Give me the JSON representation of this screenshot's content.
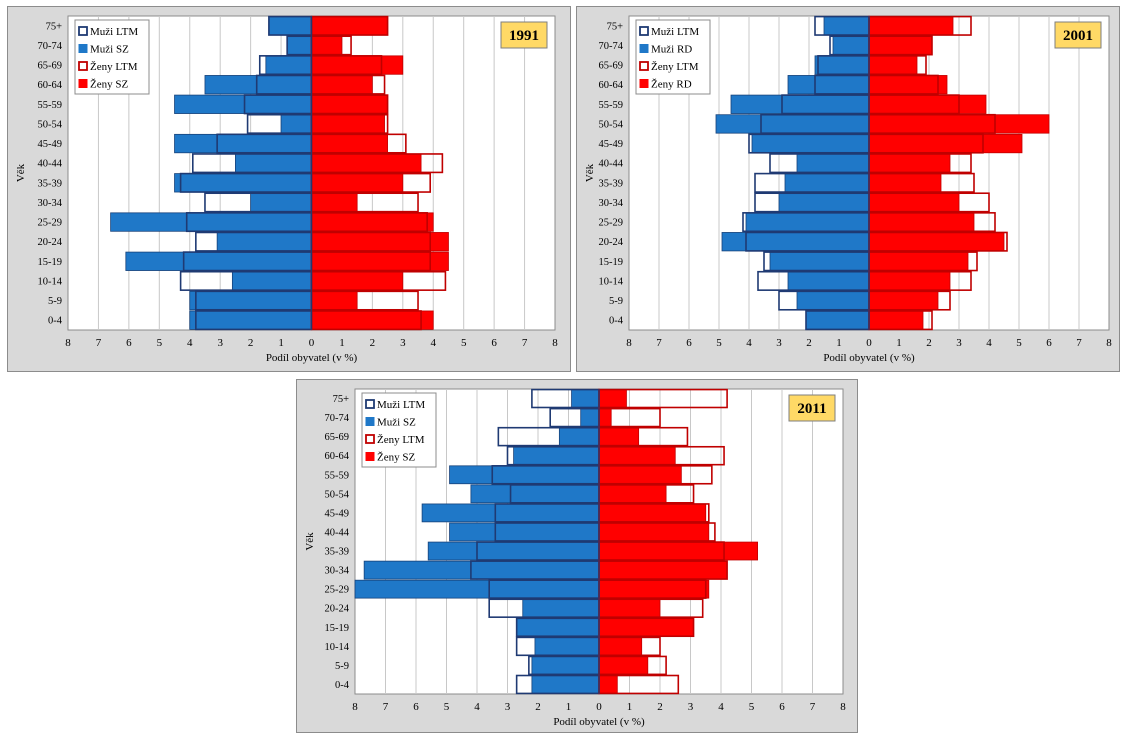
{
  "chart_data": [
    {
      "type": "bar",
      "subtype": "population-pyramid",
      "year_label": "1991",
      "xlabel": "Podíl obyvatel (v %)",
      "ylabel": "Věk",
      "x_ticks": [
        "8",
        "7",
        "6",
        "5",
        "4",
        "3",
        "2",
        "1",
        "0",
        "1",
        "2",
        "3",
        "4",
        "5",
        "6",
        "7",
        "8"
      ],
      "categories": [
        "0-4",
        "5-9",
        "10-14",
        "15-19",
        "20-24",
        "25-29",
        "30-34",
        "35-39",
        "40-44",
        "45-49",
        "50-54",
        "55-59",
        "60-64",
        "65-69",
        "70-74",
        "75+"
      ],
      "legend": [
        "Muži LTM",
        "Muži SZ",
        "Ženy LTM",
        "Ženy SZ"
      ],
      "series": [
        {
          "name": "Muži LTM",
          "side": "left",
          "style": "outline",
          "color": "#1f3a73",
          "values": [
            3.8,
            3.8,
            4.3,
            4.2,
            3.8,
            4.1,
            3.5,
            4.3,
            3.9,
            3.1,
            2.1,
            2.2,
            1.8,
            1.7,
            0.8,
            1.4
          ]
        },
        {
          "name": "Muži SZ",
          "side": "left",
          "style": "filled",
          "color": "#1f78c8",
          "values": [
            4.0,
            4.0,
            2.6,
            6.1,
            3.1,
            6.6,
            2.0,
            4.5,
            2.5,
            4.5,
            1.0,
            4.5,
            3.5,
            1.5,
            0.8,
            1.4
          ]
        },
        {
          "name": "Ženy LTM",
          "side": "right",
          "style": "outline",
          "color": "#c00000",
          "values": [
            3.6,
            3.5,
            4.4,
            3.9,
            3.9,
            3.8,
            3.5,
            3.9,
            4.3,
            3.1,
            2.5,
            2.5,
            2.4,
            2.3,
            1.3,
            2.5
          ]
        },
        {
          "name": "Ženy SZ",
          "side": "right",
          "style": "filled",
          "color": "#ff0000",
          "values": [
            4.0,
            1.5,
            3.0,
            4.5,
            4.5,
            4.0,
            1.5,
            3.0,
            3.6,
            2.5,
            2.4,
            2.5,
            2.0,
            3.0,
            1.0,
            2.5
          ]
        }
      ],
      "xlim": [
        -8,
        8
      ]
    },
    {
      "type": "bar",
      "subtype": "population-pyramid",
      "year_label": "2001",
      "xlabel": "Podíl obyvatel (v %)",
      "ylabel": "Věk",
      "x_ticks": [
        "8",
        "7",
        "6",
        "5",
        "4",
        "3",
        "2",
        "1",
        "0",
        "1",
        "2",
        "3",
        "4",
        "5",
        "6",
        "7",
        "8"
      ],
      "categories": [
        "0-4",
        "5-9",
        "10-14",
        "15-19",
        "20-24",
        "25-29",
        "30-34",
        "35-39",
        "40-44",
        "45-49",
        "50-54",
        "55-59",
        "60-64",
        "65-69",
        "70-74",
        "75+"
      ],
      "legend": [
        "Muži LTM",
        "Muži RD",
        "Ženy LTM",
        "Ženy RD"
      ],
      "series": [
        {
          "name": "Muži LTM",
          "side": "left",
          "style": "outline",
          "color": "#1f3a73",
          "values": [
            2.1,
            3.0,
            3.7,
            3.5,
            4.1,
            4.2,
            3.8,
            3.8,
            3.3,
            4.0,
            3.6,
            2.9,
            1.8,
            1.7,
            1.3,
            1.8
          ]
        },
        {
          "name": "Muži RD",
          "side": "left",
          "style": "filled",
          "color": "#1f78c8",
          "values": [
            2.1,
            2.4,
            2.7,
            3.3,
            4.9,
            4.1,
            3.0,
            2.8,
            2.4,
            3.9,
            5.1,
            4.6,
            2.7,
            1.8,
            1.2,
            1.5
          ]
        },
        {
          "name": "Ženy LTM",
          "side": "right",
          "style": "outline",
          "color": "#c00000",
          "values": [
            2.1,
            2.7,
            3.4,
            3.6,
            4.6,
            4.2,
            4.0,
            3.5,
            3.4,
            3.8,
            4.2,
            3.0,
            2.3,
            1.9,
            2.1,
            3.4
          ]
        },
        {
          "name": "Ženy RD",
          "side": "right",
          "style": "filled",
          "color": "#ff0000",
          "values": [
            1.8,
            2.3,
            2.7,
            3.3,
            4.5,
            3.5,
            3.0,
            2.4,
            2.7,
            5.1,
            6.0,
            3.9,
            2.6,
            1.6,
            2.1,
            2.8
          ]
        }
      ],
      "xlim": [
        -8,
        8
      ]
    },
    {
      "type": "bar",
      "subtype": "population-pyramid",
      "year_label": "2011",
      "xlabel": "Podíl obyvatel (v %)",
      "ylabel": "Věk",
      "x_ticks": [
        "8",
        "7",
        "6",
        "5",
        "4",
        "3",
        "2",
        "1",
        "0",
        "1",
        "2",
        "3",
        "4",
        "5",
        "6",
        "7",
        "8"
      ],
      "categories": [
        "0-4",
        "5-9",
        "10-14",
        "15-19",
        "20-24",
        "25-29",
        "30-34",
        "35-39",
        "40-44",
        "45-49",
        "50-54",
        "55-59",
        "60-64",
        "65-69",
        "70-74",
        "75+"
      ],
      "legend": [
        "Muži LTM",
        "Muži SZ",
        "Ženy LTM",
        "Ženy SZ"
      ],
      "series": [
        {
          "name": "Muži LTM",
          "side": "left",
          "style": "outline",
          "color": "#1f3a73",
          "values": [
            2.7,
            2.3,
            2.7,
            2.7,
            3.6,
            3.6,
            4.2,
            4.0,
            3.4,
            3.4,
            2.9,
            3.5,
            3.0,
            3.3,
            1.6,
            2.2
          ]
        },
        {
          "name": "Muži SZ",
          "side": "left",
          "style": "filled",
          "color": "#1f78c8",
          "values": [
            2.2,
            2.2,
            2.1,
            2.7,
            2.5,
            8.0,
            7.7,
            5.6,
            4.9,
            5.8,
            4.2,
            4.9,
            2.8,
            1.3,
            0.6,
            0.9
          ]
        },
        {
          "name": "Ženy LTM",
          "side": "right",
          "style": "outline",
          "color": "#c00000",
          "values": [
            2.6,
            2.2,
            2.0,
            3.1,
            3.4,
            3.5,
            4.2,
            4.1,
            3.8,
            3.6,
            3.1,
            3.7,
            4.1,
            2.9,
            2.0,
            4.2
          ]
        },
        {
          "name": "Ženy SZ",
          "side": "right",
          "style": "filled",
          "color": "#ff0000",
          "values": [
            0.6,
            1.6,
            1.4,
            3.1,
            2.0,
            3.6,
            4.2,
            5.2,
            3.6,
            3.5,
            2.2,
            2.7,
            2.5,
            1.3,
            0.4,
            0.9
          ]
        }
      ],
      "xlim": [
        -8,
        8
      ]
    }
  ]
}
